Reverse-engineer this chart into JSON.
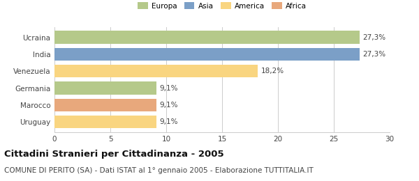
{
  "categories": [
    "Uruguay",
    "Marocco",
    "Germania",
    "Venezuela",
    "India",
    "Ucraina"
  ],
  "values": [
    9.1,
    9.1,
    9.1,
    18.2,
    27.3,
    27.3
  ],
  "labels": [
    "9,1%",
    "9,1%",
    "9,1%",
    "18,2%",
    "27,3%",
    "27,3%"
  ],
  "colors": [
    "#f9d580",
    "#e8a87c",
    "#b5c98a",
    "#f9d580",
    "#7b9fc7",
    "#b5c98a"
  ],
  "legend_items": [
    {
      "label": "Europa",
      "color": "#b5c98a"
    },
    {
      "label": "Asia",
      "color": "#7b9fc7"
    },
    {
      "label": "America",
      "color": "#f9d580"
    },
    {
      "label": "Africa",
      "color": "#e8a87c"
    }
  ],
  "xlim": [
    0,
    30
  ],
  "xticks": [
    0,
    5,
    10,
    15,
    20,
    25,
    30
  ],
  "title": "Cittadini Stranieri per Cittadinanza - 2005",
  "subtitle": "COMUNE DI PERITO (SA) - Dati ISTAT al 1° gennaio 2005 - Elaborazione TUTTITALIA.IT",
  "title_fontsize": 9.5,
  "subtitle_fontsize": 7.5,
  "bar_height": 0.75,
  "label_fontsize": 7.5,
  "tick_fontsize": 7.5,
  "background_color": "#ffffff",
  "grid_color": "#cccccc"
}
